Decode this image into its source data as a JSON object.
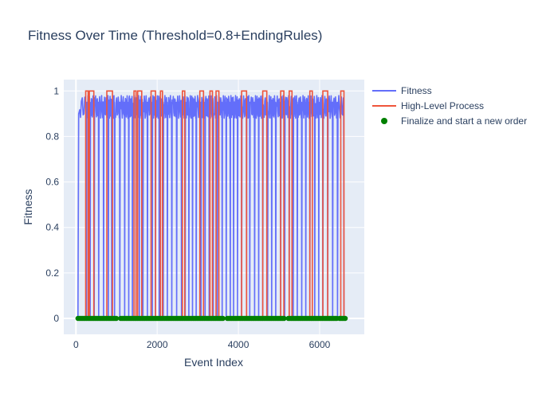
{
  "chart_data": {
    "type": "line",
    "title": "Fitness Over Time (Threshold=0.8+EndingRules)",
    "xlabel": "Event Index",
    "ylabel": "Fitness",
    "xlim": [
      -300,
      7100
    ],
    "ylim": [
      -0.07,
      1.05
    ],
    "x_ticks": [
      0,
      2000,
      4000,
      6000
    ],
    "x_tick_labels": [
      "0",
      "2000",
      "4000",
      "6000"
    ],
    "y_ticks": [
      0,
      0.2,
      0.4,
      0.6,
      0.8,
      1
    ],
    "y_tick_labels": [
      "0",
      "0.2",
      "0.4",
      "0.6",
      "0.8",
      "1"
    ],
    "grid": true,
    "legend_position": "top-right",
    "colors": {
      "plot_bg": "#e5ecf6",
      "grid": "#ffffff",
      "fitness": "#636efa",
      "high_level": "#ef553b",
      "marker": "#008000"
    },
    "series": [
      {
        "name": "Fitness",
        "kind": "line",
        "color": "#636efa",
        "description_segments": [
          [
            50,
            260
          ],
          [
            260,
            350
          ],
          [
            350,
            450
          ],
          [
            450,
            560
          ],
          [
            560,
            680
          ],
          [
            680,
            800
          ],
          [
            800,
            880
          ],
          [
            880,
            950
          ],
          [
            950,
            1080
          ],
          [
            1080,
            1200
          ],
          [
            1200,
            1300
          ],
          [
            1300,
            1390
          ],
          [
            1390,
            1480
          ],
          [
            1480,
            1560
          ],
          [
            1560,
            1650
          ],
          [
            1650,
            1760
          ],
          [
            1760,
            1880
          ],
          [
            1880,
            1960
          ],
          [
            1960,
            2050
          ],
          [
            2050,
            2150
          ],
          [
            2150,
            2250
          ],
          [
            2250,
            2360
          ],
          [
            2360,
            2480
          ],
          [
            2480,
            2600
          ],
          [
            2600,
            2690
          ],
          [
            2690,
            2780
          ],
          [
            2780,
            2870
          ],
          [
            2870,
            2960
          ],
          [
            2960,
            3080
          ],
          [
            3080,
            3180
          ],
          [
            3180,
            3280
          ],
          [
            3280,
            3380
          ],
          [
            3380,
            3480
          ],
          [
            3480,
            3600
          ],
          [
            3600,
            3700
          ],
          [
            3700,
            3800
          ],
          [
            3800,
            3880
          ],
          [
            3880,
            3980
          ],
          [
            3980,
            4080
          ],
          [
            4080,
            4200
          ],
          [
            4200,
            4280
          ],
          [
            4280,
            4400
          ],
          [
            4400,
            4500
          ],
          [
            4500,
            4600
          ],
          [
            4600,
            4720
          ],
          [
            4720,
            4820
          ],
          [
            4820,
            4920
          ],
          [
            4920,
            5040
          ],
          [
            5040,
            5140
          ],
          [
            5140,
            5250
          ],
          [
            5250,
            5350
          ],
          [
            5350,
            5450
          ],
          [
            5450,
            5560
          ],
          [
            5560,
            5660
          ],
          [
            5660,
            5760
          ],
          [
            5760,
            5880
          ],
          [
            5880,
            5980
          ],
          [
            5980,
            6080
          ],
          [
            6080,
            6200
          ],
          [
            6200,
            6320
          ],
          [
            6320,
            6440
          ],
          [
            6440,
            6600
          ]
        ]
      },
      {
        "name": "High-Level Process",
        "kind": "step",
        "color": "#ef553b",
        "high_intervals": [
          [
            240,
            300
          ],
          [
            330,
            440
          ],
          [
            760,
            900
          ],
          [
            1430,
            1480
          ],
          [
            1520,
            1620
          ],
          [
            1850,
            1960
          ],
          [
            2080,
            2130
          ],
          [
            2620,
            2680
          ],
          [
            3050,
            3140
          ],
          [
            3300,
            3360
          ],
          [
            3450,
            3520
          ],
          [
            4080,
            4200
          ],
          [
            4600,
            4700
          ],
          [
            5040,
            5120
          ],
          [
            5250,
            5320
          ],
          [
            5760,
            5820
          ],
          [
            6080,
            6200
          ],
          [
            6520,
            6600
          ]
        ],
        "x_range": [
          50,
          6600
        ]
      },
      {
        "name": "Finalize and start a new order",
        "kind": "markers",
        "color": "#008000",
        "y": 0,
        "x_range": [
          50,
          6640
        ],
        "x_step": 35,
        "gaps": [
          [
            1010,
            1090
          ],
          [
            3620,
            3700
          ],
          [
            5150,
            5200
          ],
          [
            6440,
            6480
          ]
        ]
      }
    ]
  }
}
